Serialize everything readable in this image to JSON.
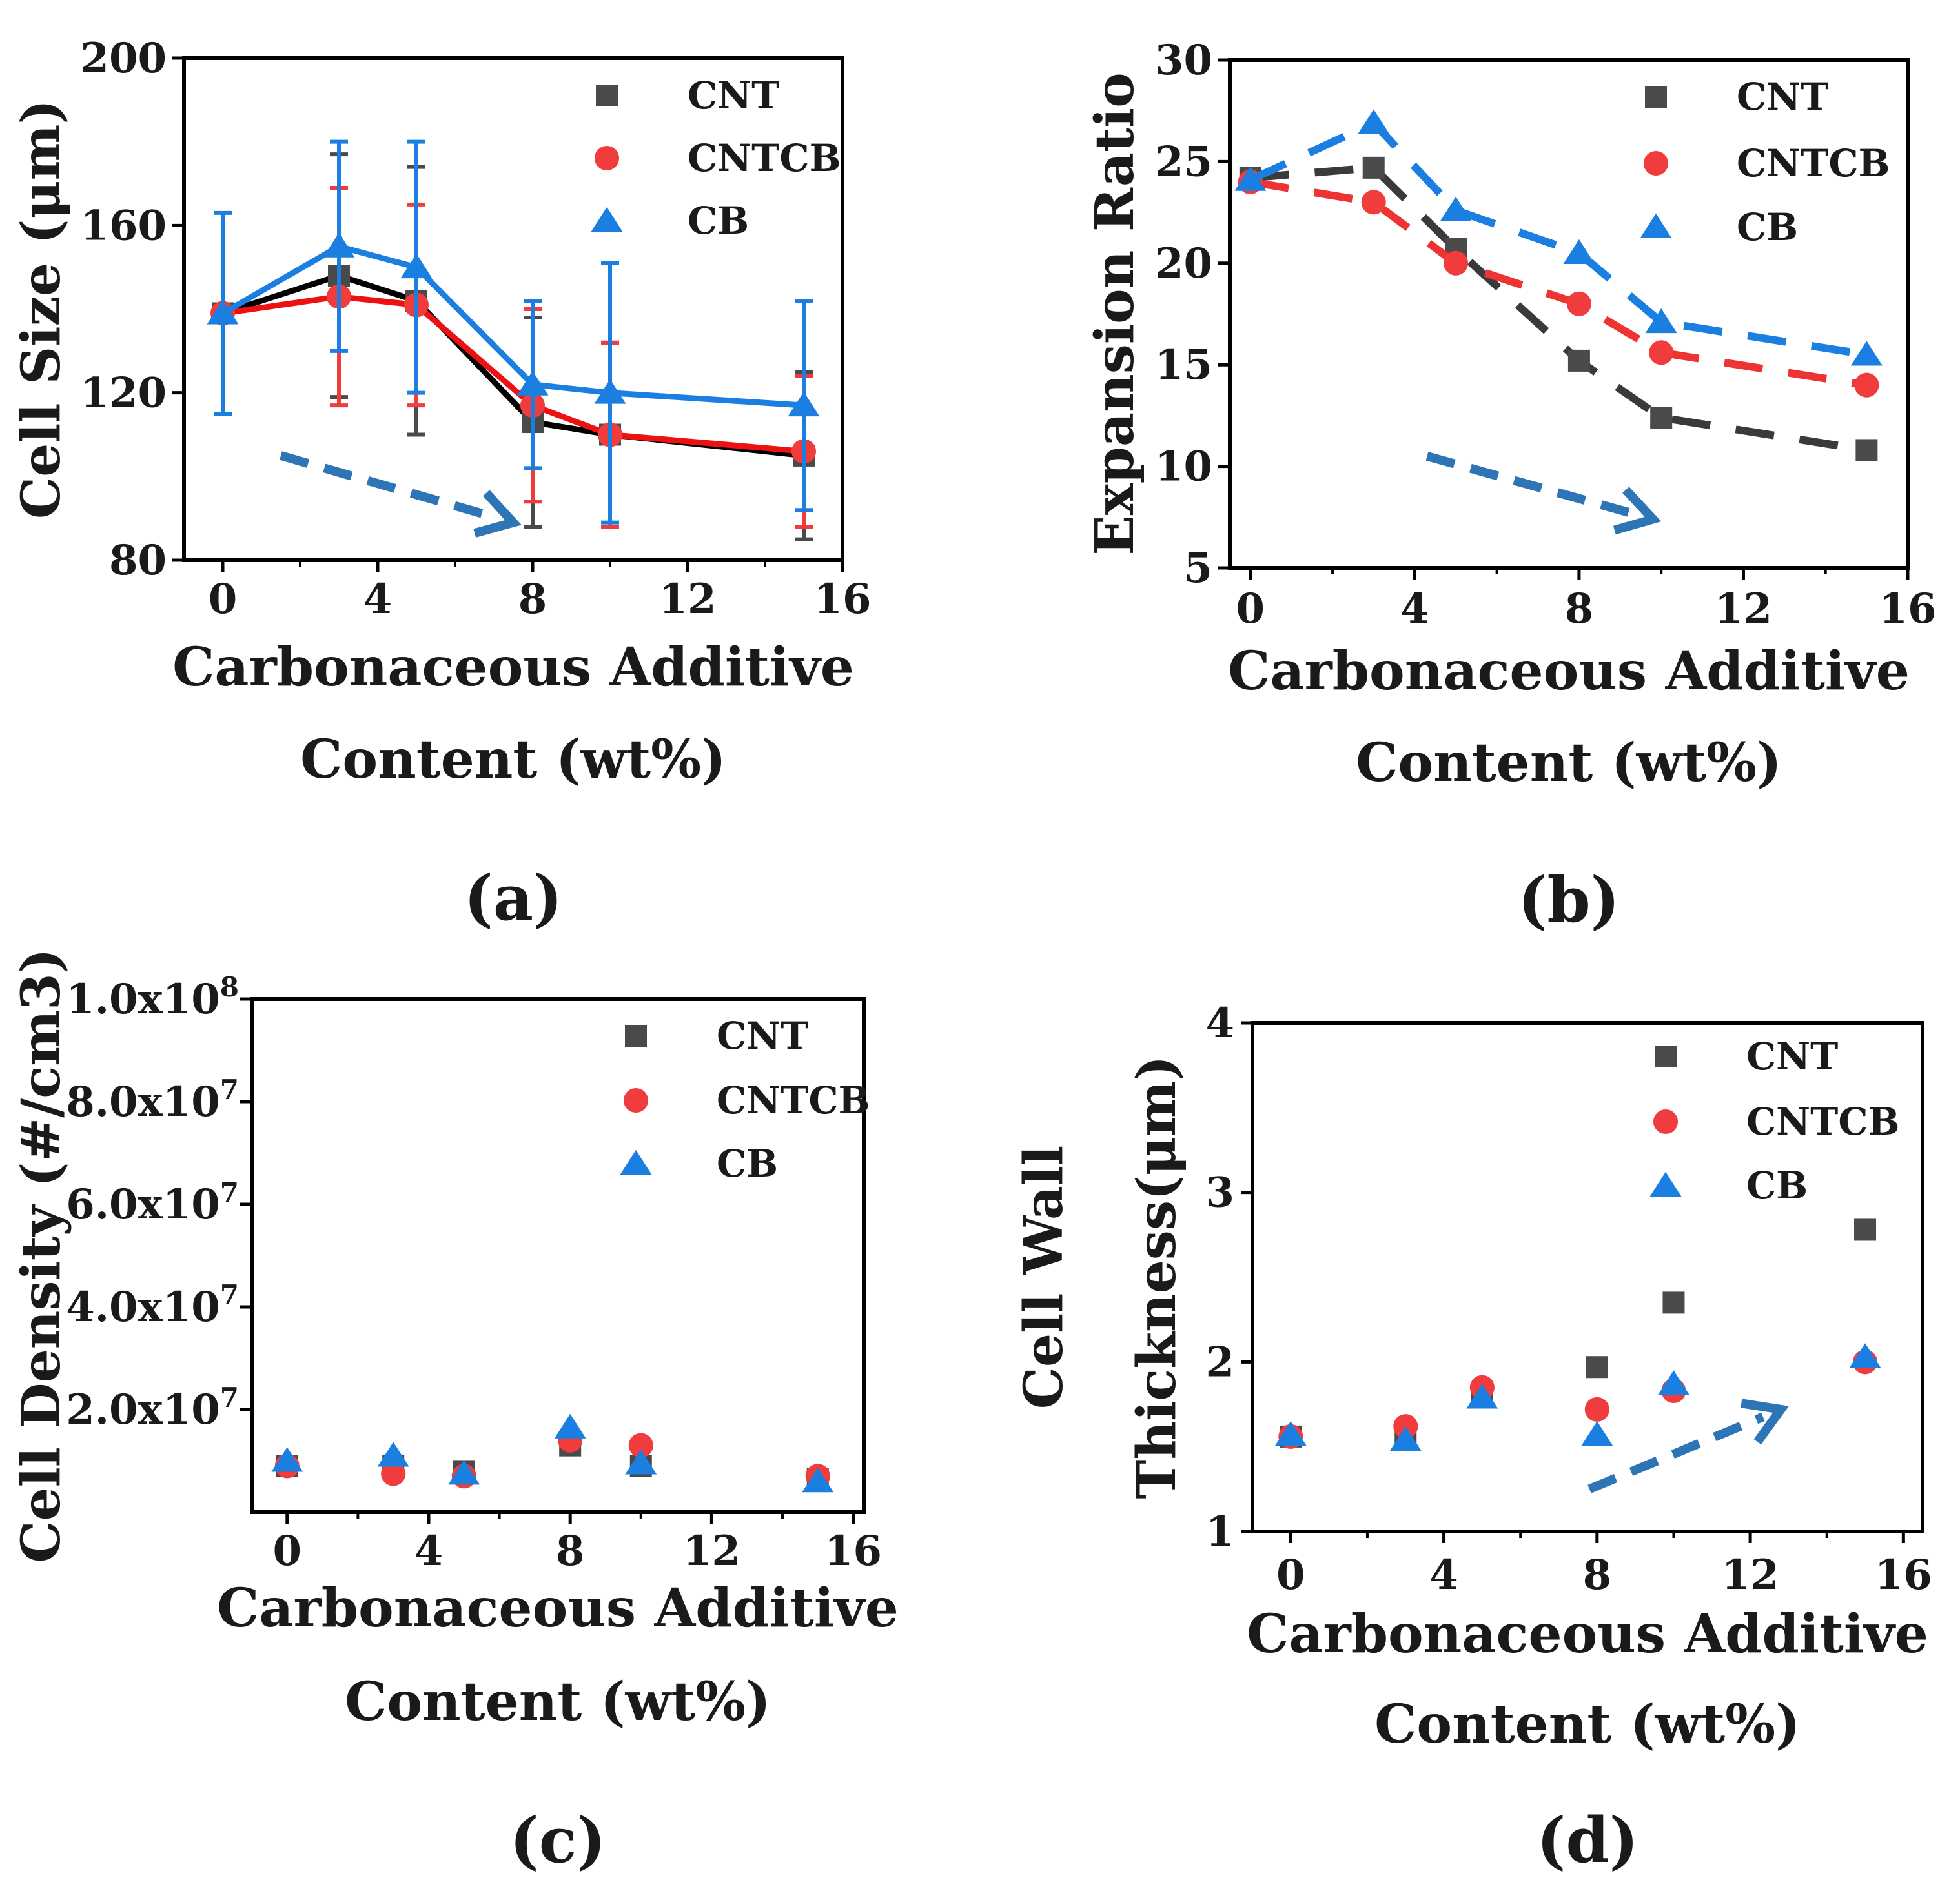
{
  "chart_data": [
    {
      "panel": "(a)",
      "type": "line",
      "xlabel_lines": [
        "Carbonaceous Additive",
        "Content (wt%)"
      ],
      "ylabel": "Cell Size (μm)",
      "xlim": [
        -1,
        16
      ],
      "ylim": [
        80,
        200
      ],
      "xticks": [
        0,
        4,
        8,
        12,
        16
      ],
      "yticks": [
        80,
        120,
        160,
        200
      ],
      "ytick_labels": [
        "80",
        "120",
        "160",
        "200"
      ],
      "legend": [
        "CNT",
        "CNTCB",
        "CB"
      ],
      "connect": "solid",
      "series": [
        {
          "name": "CNT",
          "color": "#4a4a4a",
          "line_color": "#000000",
          "marker": "square",
          "x": [
            0,
            3,
            5,
            8,
            10,
            15
          ],
          "y": [
            139,
            148,
            142,
            113,
            110,
            105
          ],
          "err": [
            0,
            29,
            32,
            25,
            22,
            20
          ]
        },
        {
          "name": "CNTCB",
          "color": "#f03c3c",
          "line_color": "#ee1111",
          "marker": "circle",
          "x": [
            0,
            3,
            5,
            8,
            10,
            15
          ],
          "y": [
            139,
            143,
            141,
            117,
            110,
            106
          ],
          "err": [
            0,
            26,
            24,
            23,
            22,
            18
          ]
        },
        {
          "name": "CB",
          "color": "#1a7fe0",
          "line_color": "#1a7fe0",
          "marker": "triangle",
          "x": [
            0,
            3,
            5,
            8,
            10,
            15
          ],
          "y": [
            139,
            155,
            150,
            122,
            120,
            117
          ],
          "err": [
            24,
            25,
            30,
            20,
            31,
            25
          ]
        }
      ],
      "annotation": {
        "type": "dashed-arrow",
        "color": "#2e75b6",
        "from": [
          1.5,
          105
        ],
        "to": [
          7.5,
          89
        ]
      }
    },
    {
      "panel": "(b)",
      "type": "line",
      "xlabel_lines": [
        "Carbonaceous Additive",
        "Content (wt%)"
      ],
      "ylabel": "Expansion Ratio",
      "xlim": [
        -0.5,
        16
      ],
      "ylim": [
        5,
        30
      ],
      "xticks": [
        0,
        4,
        8,
        12,
        16
      ],
      "yticks": [
        5,
        10,
        15,
        20,
        25,
        30
      ],
      "ytick_labels": [
        "5",
        "10",
        "15",
        "20",
        "25",
        "30"
      ],
      "legend": [
        "CNT",
        "CNTCB",
        "CB"
      ],
      "connect": "dashed",
      "series": [
        {
          "name": "CNT",
          "color": "#4a4a4a",
          "line_color": "#3a3a3a",
          "marker": "square",
          "x": [
            0,
            3,
            5,
            8,
            10,
            15
          ],
          "y": [
            24.2,
            24.7,
            20.7,
            15.2,
            12.4,
            10.8
          ]
        },
        {
          "name": "CNTCB",
          "color": "#f03c3c",
          "line_color": "#ee3333",
          "marker": "circle",
          "x": [
            0,
            3,
            5,
            8,
            10,
            15
          ],
          "y": [
            24.0,
            23.0,
            20.0,
            18.0,
            15.6,
            14.0
          ]
        },
        {
          "name": "CB",
          "color": "#1a7fe0",
          "line_color": "#1a7fe0",
          "marker": "triangle",
          "x": [
            0,
            3,
            5,
            8,
            10,
            15
          ],
          "y": [
            24.1,
            26.9,
            22.6,
            20.5,
            17.1,
            15.5
          ]
        }
      ],
      "annotation": {
        "type": "dashed-arrow",
        "color": "#2e75b6",
        "from": [
          4.3,
          10.5
        ],
        "to": [
          9.8,
          7.4
        ]
      }
    },
    {
      "panel": "(c)",
      "type": "scatter",
      "xlabel_lines": [
        "Carbonaceous Additive",
        "Content (wt%)"
      ],
      "ylabel": "Cell Density (#/cm3)",
      "xlim": [
        -1,
        16.3
      ],
      "ylim": [
        0,
        100000000
      ],
      "xticks": [
        0,
        4,
        8,
        12,
        16
      ],
      "yticks": [
        20000000,
        40000000,
        60000000,
        80000000,
        100000000
      ],
      "ytick_labels": [
        {
          "mantissa": "2.0x10",
          "exp": "7"
        },
        {
          "mantissa": "4.0x10",
          "exp": "7"
        },
        {
          "mantissa": "6.0x10",
          "exp": "7"
        },
        {
          "mantissa": "8.0x10",
          "exp": "7"
        },
        {
          "mantissa": "1.0x10",
          "exp": "8"
        }
      ],
      "legend": [
        "CNT",
        "CNTCB",
        "CB"
      ],
      "connect": "none",
      "series": [
        {
          "name": "CNT",
          "color": "#4a4a4a",
          "marker": "square",
          "x": [
            0,
            3,
            5,
            8,
            10,
            15
          ],
          "y": [
            9000000,
            9000000,
            8000000,
            13000000,
            9000000,
            6500000
          ]
        },
        {
          "name": "CNTCB",
          "color": "#f03c3c",
          "marker": "circle",
          "x": [
            0,
            3,
            5,
            8,
            10,
            15
          ],
          "y": [
            9000000,
            7500000,
            7000000,
            14000000,
            13000000,
            7000000
          ]
        },
        {
          "name": "CB",
          "color": "#1a7fe0",
          "marker": "triangle",
          "x": [
            0,
            3,
            5,
            8,
            10,
            15
          ],
          "y": [
            10000000,
            11000000,
            7500000,
            16500000,
            9500000,
            6000000
          ]
        }
      ]
    },
    {
      "panel": "(d)",
      "type": "scatter",
      "xlabel_lines": [
        "Carbonaceous Additive",
        "Content (wt%)"
      ],
      "ylabel_lines": [
        "Cell Wall",
        "Thickness(μm)"
      ],
      "xlim": [
        -1,
        16.5
      ],
      "ylim": [
        1,
        4
      ],
      "xticks": [
        0,
        4,
        8,
        12,
        16
      ],
      "yticks": [
        1,
        2,
        3,
        4
      ],
      "ytick_labels": [
        "1",
        "2",
        "3",
        "4"
      ],
      "legend": [
        "CNT",
        "CNTCB",
        "CB"
      ],
      "connect": "none",
      "series": [
        {
          "name": "CNT",
          "color": "#4a4a4a",
          "marker": "square",
          "x": [
            0,
            3,
            5,
            8,
            10,
            15
          ],
          "y": [
            1.56,
            1.55,
            1.8,
            1.97,
            2.35,
            2.78
          ]
        },
        {
          "name": "CNTCB",
          "color": "#f03c3c",
          "marker": "circle",
          "x": [
            0,
            3,
            5,
            8,
            10,
            15
          ],
          "y": [
            1.56,
            1.62,
            1.85,
            1.72,
            1.83,
            2.0
          ]
        },
        {
          "name": "CB",
          "color": "#1a7fe0",
          "marker": "triangle",
          "x": [
            0,
            3,
            5,
            8,
            10,
            15
          ],
          "y": [
            1.57,
            1.54,
            1.79,
            1.57,
            1.87,
            2.03
          ]
        }
      ],
      "annotation": {
        "type": "dashed-arrow",
        "color": "#2e75b6",
        "from": [
          7.8,
          1.25
        ],
        "to": [
          12.8,
          1.72
        ]
      }
    }
  ]
}
